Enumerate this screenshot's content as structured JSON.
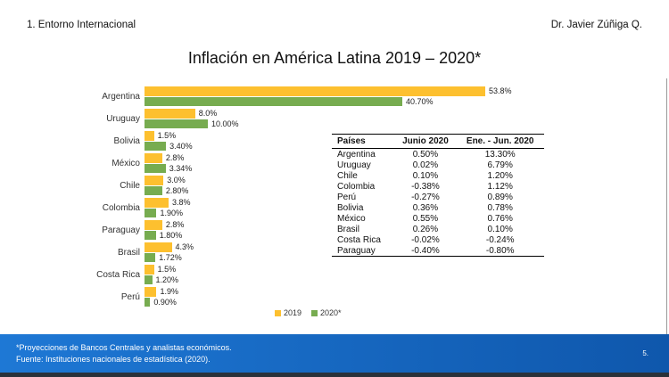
{
  "slide": {
    "header_left": "1. Entorno Internacional",
    "header_right": "Dr. Javier Zúñiga Q.",
    "title": "Inflación en América Latina 2019 – 2020*",
    "footer": {
      "line1": "*Proyecciones de Bancos Centrales y analistas económicos.",
      "line2": "Fuente: Instituciones nacionales de estadística (2020).",
      "page_number": "5."
    }
  },
  "colors": {
    "bar_2019": "#FDC02F",
    "bar_2020": "#77AC50",
    "footer_blue_left": "#1E78D5",
    "footer_blue_right": "#0F57AC",
    "footer_strip": "#2A313A"
  },
  "chart_data": {
    "type": "bar",
    "orientation": "horizontal",
    "title": "Inflación en América Latina 2019 – 2020*",
    "categories": [
      "Argentina",
      "Uruguay",
      "Bolivia",
      "México",
      "Chile",
      "Colombia",
      "Paraguay",
      "Brasil",
      "Costa Rica",
      "Perú"
    ],
    "series": [
      {
        "name": "2019",
        "color_key": "bar_2019",
        "values": [
          53.8,
          8.0,
          1.5,
          2.8,
          3.0,
          3.8,
          2.8,
          4.3,
          1.5,
          1.9
        ],
        "labels": [
          "53.8%",
          "8.0%",
          "1.5%",
          "2.8%",
          "3.0%",
          "3.8%",
          "2.8%",
          "4.3%",
          "1.5%",
          "1.9%"
        ]
      },
      {
        "name": "2020*",
        "color_key": "bar_2020",
        "values": [
          40.7,
          10.0,
          3.4,
          3.34,
          2.8,
          1.9,
          1.8,
          1.72,
          1.2,
          0.9
        ],
        "labels": [
          "40.70%",
          "10.00%",
          "3.40%",
          "3.34%",
          "2.80%",
          "1.90%",
          "1.80%",
          "1.72%",
          "1.20%",
          "0.90%"
        ]
      }
    ],
    "xlim": [
      0,
      57
    ],
    "legend": [
      "2019",
      "2020*"
    ],
    "legend_position": "bottom",
    "value_labels": true,
    "grid": false
  },
  "table": {
    "headers": [
      "Países",
      "Junio 2020",
      "Ene. - Jun. 2020"
    ],
    "rows": [
      [
        "Argentina",
        "0.50%",
        "13.30%"
      ],
      [
        "Uruguay",
        "0.02%",
        "6.79%"
      ],
      [
        "Chile",
        "0.10%",
        "1.20%"
      ],
      [
        "Colombia",
        "-0.38%",
        "1.12%"
      ],
      [
        "Perú",
        "-0.27%",
        "0.89%"
      ],
      [
        "Bolivia",
        "0.36%",
        "0.78%"
      ],
      [
        "México",
        "0.55%",
        "0.76%"
      ],
      [
        "Brasil",
        "0.26%",
        "0.10%"
      ],
      [
        "Costa Rica",
        "-0.02%",
        "-0.24%"
      ],
      [
        "Paraguay",
        "-0.40%",
        "-0.80%"
      ]
    ]
  }
}
